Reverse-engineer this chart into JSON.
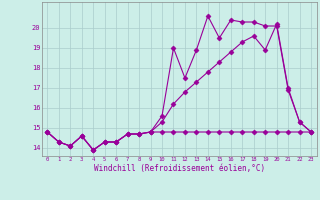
{
  "line1_x": [
    0,
    1,
    2,
    3,
    4,
    5,
    6,
    7,
    8,
    9,
    10,
    11,
    12,
    13,
    14,
    15,
    16,
    17,
    18,
    19,
    20,
    21,
    22,
    23
  ],
  "line1_y": [
    14.8,
    14.3,
    14.1,
    14.6,
    13.9,
    14.3,
    14.3,
    14.7,
    14.7,
    14.8,
    14.8,
    14.8,
    14.8,
    14.8,
    14.8,
    14.8,
    14.8,
    14.8,
    14.8,
    14.8,
    14.8,
    14.8,
    14.8,
    14.8
  ],
  "line2_x": [
    0,
    1,
    2,
    3,
    4,
    5,
    6,
    7,
    8,
    9,
    10,
    11,
    12,
    13,
    14,
    15,
    16,
    17,
    18,
    19,
    20,
    21,
    22,
    23
  ],
  "line2_y": [
    14.8,
    14.3,
    14.1,
    14.6,
    13.9,
    14.3,
    14.3,
    14.7,
    14.7,
    14.8,
    15.3,
    16.2,
    16.8,
    17.3,
    17.8,
    18.3,
    18.8,
    19.3,
    19.6,
    18.9,
    20.2,
    17.0,
    15.3,
    14.8
  ],
  "line3_x": [
    0,
    1,
    2,
    3,
    4,
    5,
    6,
    7,
    8,
    9,
    10,
    11,
    12,
    13,
    14,
    15,
    16,
    17,
    18,
    19,
    20,
    21,
    22,
    23
  ],
  "line3_y": [
    14.8,
    14.3,
    14.1,
    14.6,
    13.9,
    14.3,
    14.3,
    14.7,
    14.7,
    14.8,
    15.6,
    19.0,
    17.5,
    18.9,
    20.6,
    19.5,
    20.4,
    20.3,
    20.3,
    20.1,
    20.1,
    16.9,
    15.3,
    14.8
  ],
  "line_color": "#990099",
  "bg_color": "#cceee8",
  "grid_color": "#aacccc",
  "xlabel": "Windchill (Refroidissement éolien,°C)",
  "yticks": [
    14,
    15,
    16,
    17,
    18,
    19,
    20
  ],
  "xticks": [
    0,
    1,
    2,
    3,
    4,
    5,
    6,
    7,
    8,
    9,
    10,
    11,
    12,
    13,
    14,
    15,
    16,
    17,
    18,
    19,
    20,
    21,
    22,
    23
  ],
  "ylim": [
    13.6,
    21.3
  ],
  "xlim": [
    -0.5,
    23.5
  ],
  "markersize": 2.5,
  "linewidth": 0.8
}
